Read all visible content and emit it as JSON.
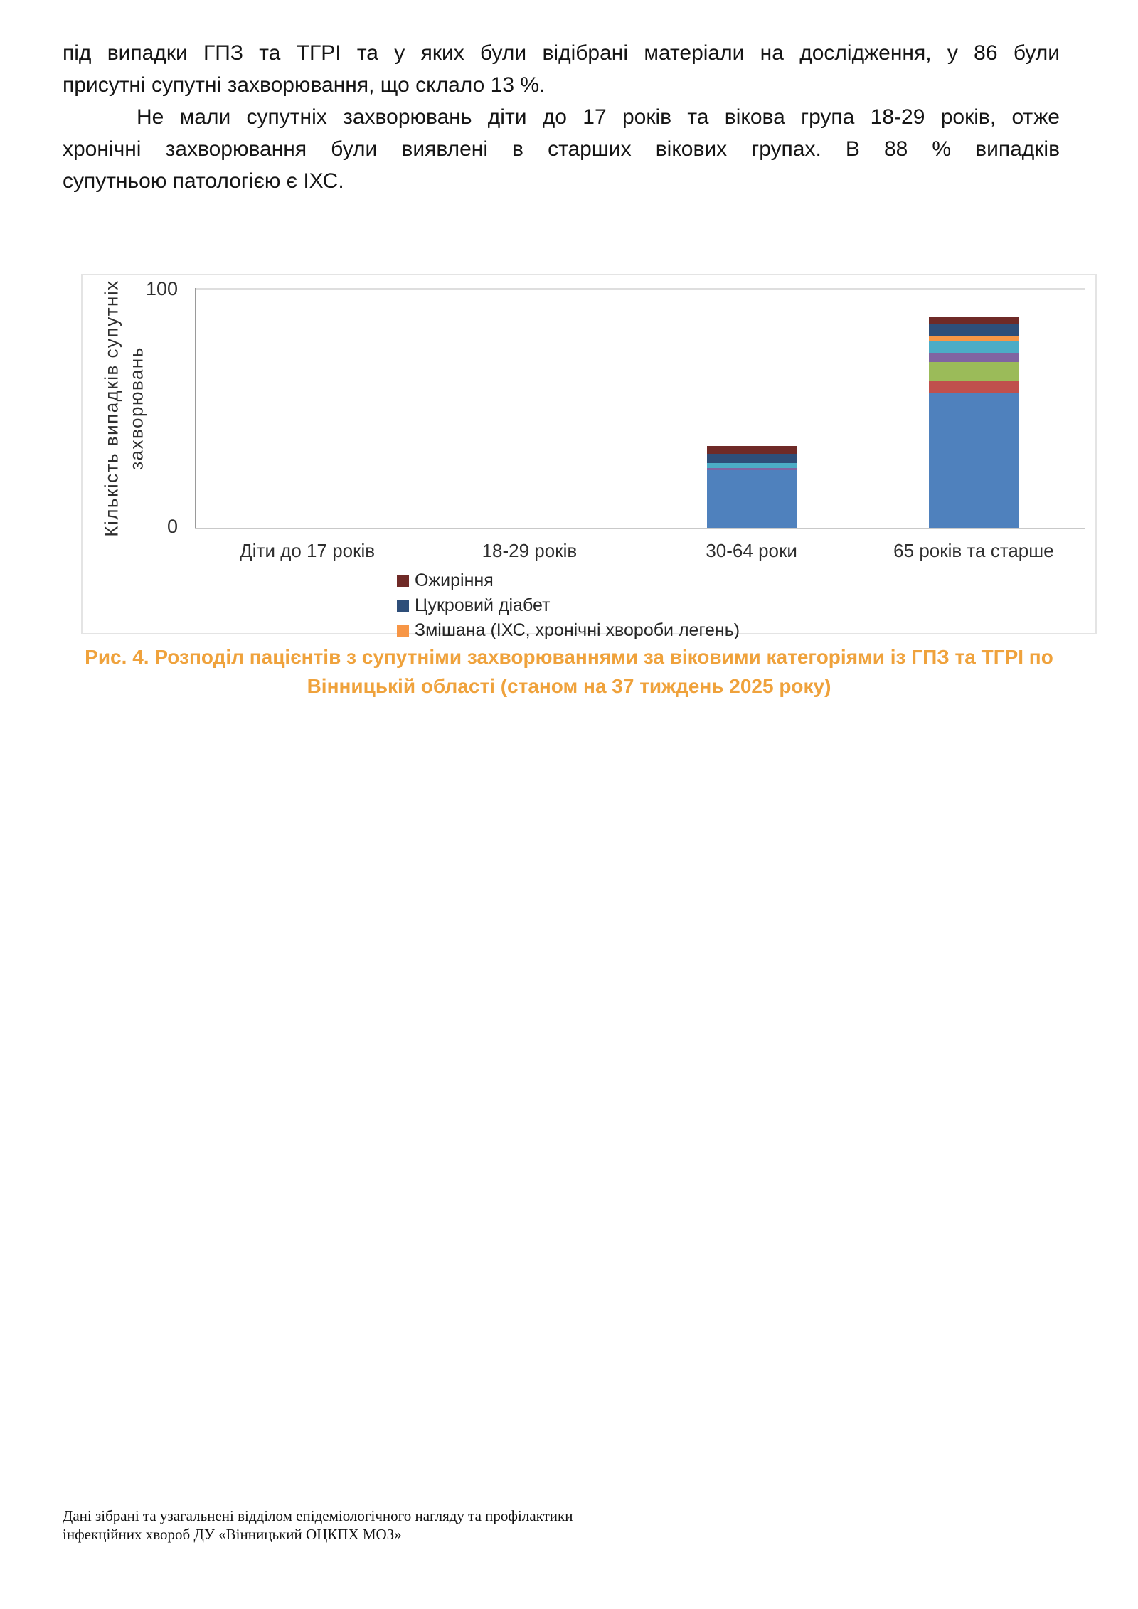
{
  "body_text": {
    "p1_lines": [
      "під випадки ГПЗ та ТГРІ та у яких були відібрані матеріали на дослідження, у 86 були",
      "присутні супутні захворювання, що склало 13 %."
    ],
    "p2_lines": [
      "Не мали супутніх захворювань діти до 17 років та вікова група 18-29 років, отже",
      "хронічні захворювання були виявлені в старших вікових групах. В 88 % випадків",
      "супутньою патологією є ІХС."
    ]
  },
  "chart": {
    "ytick_top": "100",
    "ytick_bottom": "0",
    "ylabel_line1": "Кількість випадків супутніх",
    "ylabel_line2": "захворювань"
  },
  "chart_data": {
    "type": "bar",
    "stacked": true,
    "title": "",
    "categories": [
      "Діти до 17 років",
      "18-29 років",
      "30-64 роки",
      "65 років та старше"
    ],
    "series": [
      {
        "label": "",
        "color": "#4F81BD",
        "values": [
          0,
          0,
          24,
          56
        ]
      },
      {
        "label": "",
        "color": "#C0504D",
        "values": [
          0,
          0,
          0,
          5
        ]
      },
      {
        "label": "",
        "color": "#9BBB59",
        "values": [
          0,
          0,
          0,
          8
        ]
      },
      {
        "label": "",
        "color": "#8064A2",
        "values": [
          0,
          0,
          1,
          4
        ]
      },
      {
        "label": "",
        "color": "#4BACC6",
        "values": [
          0,
          0,
          2,
          5
        ]
      },
      {
        "label": "Змішана (ІХС, хронічні хвороби легень)",
        "color": "#F79646",
        "values": [
          0,
          0,
          0,
          2
        ]
      },
      {
        "label": "Цукровий діабет",
        "color": "#2E4E79",
        "values": [
          0,
          0,
          4,
          5
        ]
      },
      {
        "label": "Ожиріння",
        "color": "#6F2A27",
        "values": [
          0,
          0,
          3,
          3
        ]
      }
    ],
    "ylabel": "Кількість випадків супутніх захворювань",
    "ylim": [
      0,
      100
    ],
    "yticks": [
      0,
      100
    ],
    "grid": "top-line-only",
    "legend_position": "bottom-left",
    "legend": [
      {
        "label": "Ожиріння",
        "color": "#6F2A27"
      },
      {
        "label": "Цукровий діабет",
        "color": "#2E4E79"
      },
      {
        "label": "Змішана (ІХС, хронічні хвороби легень)",
        "color": "#F79646"
      }
    ]
  },
  "caption": {
    "line1": "Рис. 4. Розподіл пацієнтів з супутніми захворюваннями за віковими категоріями із ГПЗ та ТГРІ по",
    "line2": "Вінницькій області (станом на 37 тиждень 2025 року)"
  },
  "footer": {
    "line1": "Дані зібрані та узагальнені відділом епідеміологічного нагляду та профілактики",
    "line2": "інфекційних хвороб ДУ «Вінницький ОЦКПХ МОЗ»"
  }
}
